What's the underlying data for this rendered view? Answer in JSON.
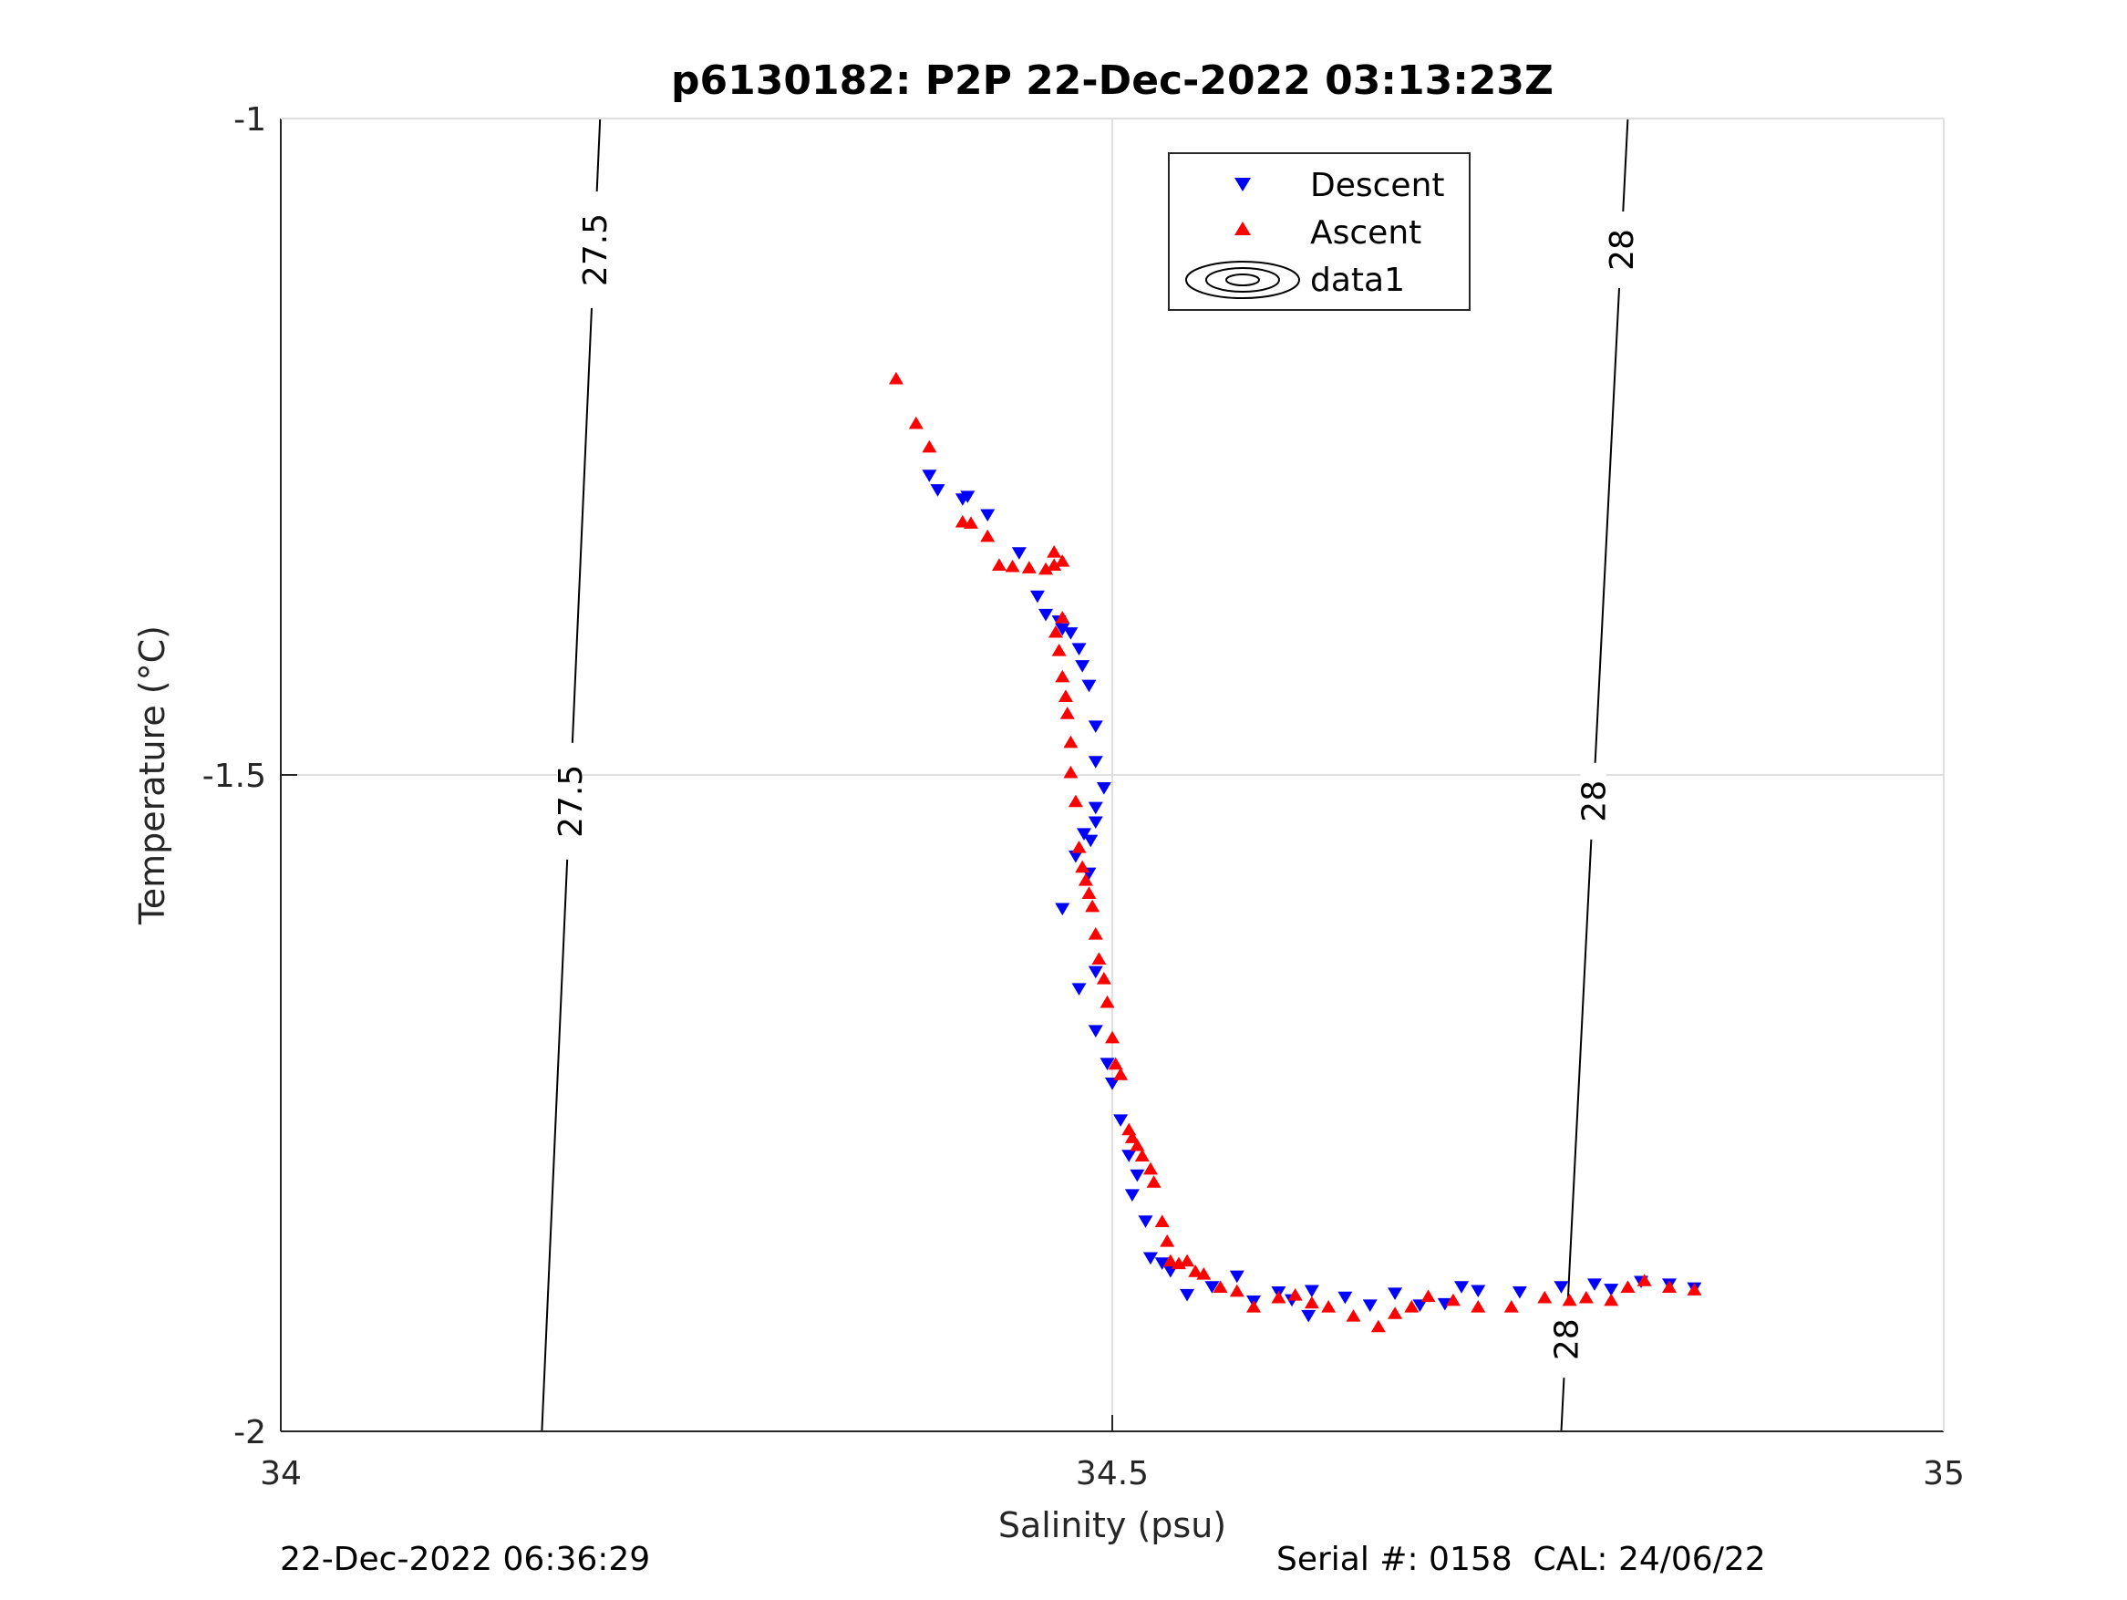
{
  "chart_data": {
    "type": "scatter",
    "title": "p6130182: P2P 22-Dec-2022 03:13:23Z",
    "xlabel": "Salinity (psu)",
    "ylabel": "Temperature (°C)",
    "xlim": [
      34,
      35
    ],
    "ylim": [
      -2,
      -1
    ],
    "xticks": [
      "34",
      "34.5",
      "35"
    ],
    "yticks": [
      "-2",
      "-1.5",
      "-1"
    ],
    "grid": true,
    "legend_position": "top-center",
    "legend": [
      "Descent",
      "Ascent",
      "data1"
    ],
    "series": [
      {
        "name": "Descent",
        "color": "#0000ff",
        "marker": "triangle-down",
        "x": [
          34.39,
          34.395,
          34.41,
          34.413,
          34.425,
          34.444,
          34.455,
          34.46,
          34.468,
          34.47,
          34.475,
          34.48,
          34.482,
          34.486,
          34.49,
          34.49,
          34.483,
          34.487,
          34.49,
          34.495,
          34.49,
          34.486,
          34.478,
          34.47,
          34.49,
          34.48,
          34.49,
          34.497,
          34.5,
          34.505,
          34.51,
          34.515,
          34.512,
          34.52,
          34.523,
          34.53,
          34.535,
          34.545,
          34.56,
          34.575,
          34.585,
          34.6,
          34.618,
          34.608,
          34.62,
          34.64,
          34.655,
          34.67,
          34.685,
          34.7,
          34.71,
          34.72,
          34.745,
          34.77,
          34.79,
          34.8,
          34.818,
          34.835,
          34.85
        ],
        "y": [
          -1.272,
          -1.283,
          -1.29,
          -1.288,
          -1.302,
          -1.331,
          -1.364,
          -1.378,
          -1.383,
          -1.389,
          -1.392,
          -1.404,
          -1.417,
          -1.432,
          -1.463,
          -1.49,
          -1.545,
          -1.55,
          -1.525,
          -1.51,
          -1.536,
          -1.575,
          -1.562,
          -1.602,
          -1.65,
          -1.663,
          -1.695,
          -1.72,
          -1.735,
          -1.763,
          -1.79,
          -1.805,
          -1.82,
          -1.84,
          -1.868,
          -1.872,
          -1.878,
          -1.896,
          -1.89,
          -1.882,
          -1.901,
          -1.894,
          -1.912,
          -1.9,
          -1.893,
          -1.898,
          -1.904,
          -1.895,
          -1.904,
          -1.903,
          -1.89,
          -1.893,
          -1.894,
          -1.89,
          -1.888,
          -1.892,
          -1.886,
          -1.888,
          -1.891
        ]
      },
      {
        "name": "Ascent",
        "color": "#ff0000",
        "marker": "triangle-up",
        "x": [
          34.37,
          34.382,
          34.39,
          34.41,
          34.415,
          34.425,
          34.432,
          34.44,
          34.45,
          34.46,
          34.465,
          34.465,
          34.47,
          34.47,
          34.466,
          34.468,
          34.47,
          34.472,
          34.473,
          34.475,
          34.475,
          34.478,
          34.48,
          34.482,
          34.484,
          34.486,
          34.488,
          34.49,
          34.492,
          34.495,
          34.497,
          34.5,
          34.502,
          34.505,
          34.51,
          34.512,
          34.515,
          34.518,
          34.523,
          34.525,
          34.53,
          34.533,
          34.535,
          34.54,
          34.545,
          34.55,
          34.555,
          34.565,
          34.575,
          34.585,
          34.6,
          34.61,
          34.62,
          34.63,
          34.645,
          34.66,
          34.67,
          34.68,
          34.69,
          34.705,
          34.72,
          34.74,
          34.76,
          34.775,
          34.785,
          34.8,
          34.81,
          34.82,
          34.835,
          34.85
        ],
        "y": [
          -1.198,
          -1.232,
          -1.25,
          -1.307,
          -1.308,
          -1.318,
          -1.34,
          -1.341,
          -1.342,
          -1.343,
          -1.34,
          -1.33,
          -1.337,
          -1.38,
          -1.391,
          -1.405,
          -1.425,
          -1.44,
          -1.453,
          -1.475,
          -1.498,
          -1.52,
          -1.555,
          -1.57,
          -1.58,
          -1.59,
          -1.6,
          -1.621,
          -1.64,
          -1.655,
          -1.673,
          -1.7,
          -1.72,
          -1.728,
          -1.77,
          -1.776,
          -1.782,
          -1.79,
          -1.8,
          -1.81,
          -1.84,
          -1.855,
          -1.87,
          -1.872,
          -1.87,
          -1.878,
          -1.88,
          -1.89,
          -1.893,
          -1.905,
          -1.898,
          -1.896,
          -1.902,
          -1.905,
          -1.912,
          -1.92,
          -1.91,
          -1.905,
          -1.897,
          -1.9,
          -1.905,
          -1.905,
          -1.898,
          -1.9,
          -1.898,
          -1.9,
          -1.89,
          -1.885,
          -1.89,
          -1.892
        ]
      },
      {
        "name": "data1",
        "color": "#000000",
        "type": "contour",
        "levels": [
          27.5,
          28
        ],
        "lines": [
          {
            "label": "27.5",
            "x": [
              34.192,
              34.157
            ],
            "y": [
              -1.0,
              -2.0
            ]
          },
          {
            "label": "28",
            "x": [
              34.81,
              34.77
            ],
            "y": [
              -1.0,
              -2.0
            ]
          }
        ]
      }
    ],
    "contour_labels": [
      {
        "text": "27.5",
        "x": 34.19,
        "y": -1.1
      },
      {
        "text": "27.5",
        "x": 34.17,
        "y": -1.52
      },
      {
        "text": "28",
        "x": 34.81,
        "y": -1.1
      },
      {
        "text": "28",
        "x": 34.79,
        "y": -1.52
      },
      {
        "text": "28",
        "x": 34.77,
        "y": -1.93
      }
    ]
  },
  "footer": {
    "left": "22-Dec-2022 06:36:29",
    "right": "Serial #: 0158  CAL: 24/06/22"
  }
}
